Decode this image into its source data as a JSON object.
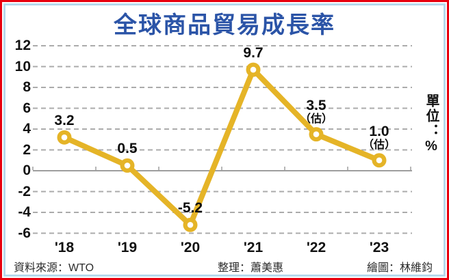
{
  "title": "全球商品貿易成長率",
  "unit_label": "單位：%",
  "footer": {
    "source": "資料來源：WTO",
    "editor": "整理：蕭美惠",
    "illustrator": "繪圖：林維鈞"
  },
  "colors": {
    "title_blue": "#2b54a7",
    "line_gold": "#e5b427",
    "gridline_gray": "#ababab",
    "axis_gray": "#9e9e9e",
    "label_black": "#0d0d0d",
    "border_red": "#e8000e",
    "border_lightblue": "#b5d9ec"
  },
  "chart_data": {
    "type": "line",
    "title": "全球商品貿易成長率",
    "xlabel": "",
    "ylabel": "單位：%",
    "categories": [
      "'18",
      "'19",
      "'20",
      "'21",
      "'22",
      "'23"
    ],
    "values": [
      3.2,
      0.5,
      -5.2,
      9.7,
      3.5,
      1.0
    ],
    "point_labels": [
      "3.2",
      "0.5",
      "-5.2",
      "9.7",
      "3.5",
      "1.0"
    ],
    "estimated": [
      false,
      false,
      false,
      false,
      true,
      true
    ],
    "estimate_suffix": "（估）",
    "y_ticks": [
      12,
      10,
      8,
      6,
      4,
      2,
      0,
      -2,
      -4,
      -6
    ],
    "ylim": [
      -6,
      12
    ],
    "grid": "horizontal-dashed",
    "legend_position": "none",
    "line_color": "#e5b427",
    "marker": "circle-ring-white-center",
    "source": "資料來源：WTO"
  }
}
